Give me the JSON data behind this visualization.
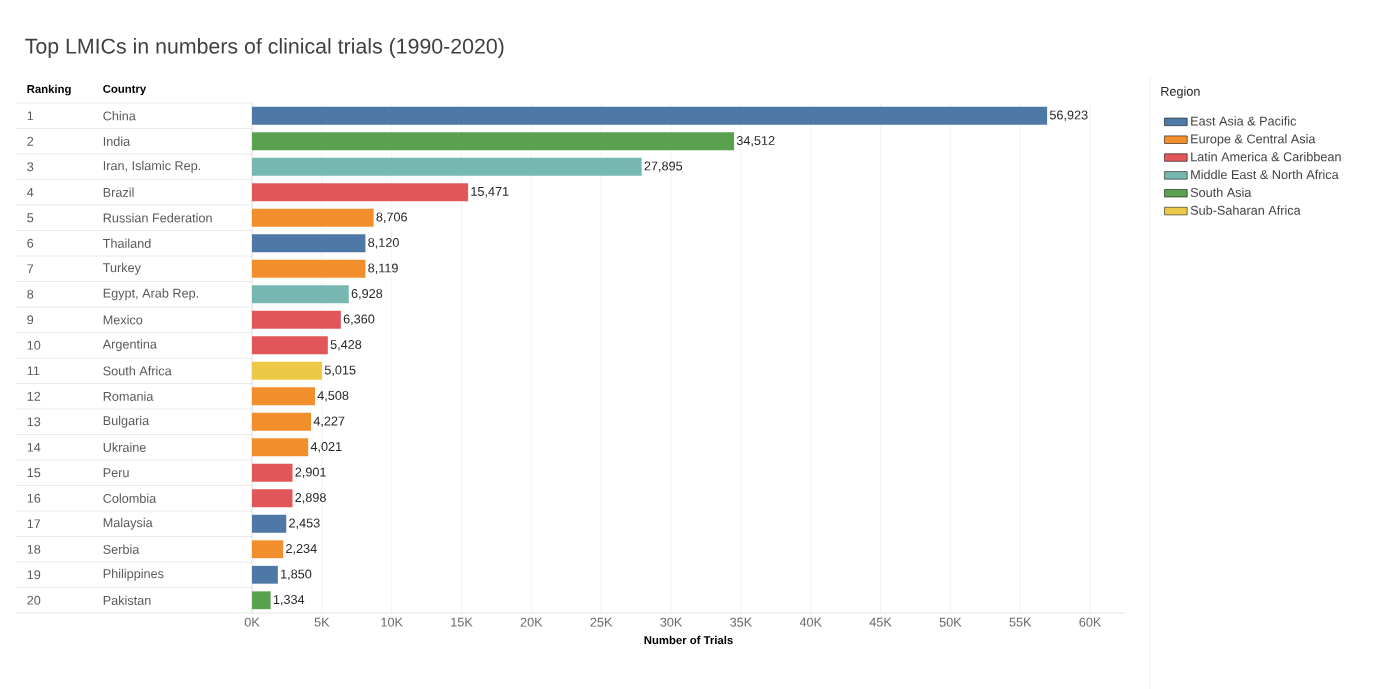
{
  "chart_data": {
    "type": "bar",
    "orientation": "horizontal",
    "title": "Top LMICs in numbers of clinical trials (1990-2020)",
    "xlabel": "Number of Trials",
    "ylabel": "Country",
    "legend_title": "Region",
    "categories": [
      "China",
      "India",
      "Iran, Islamic Rep.",
      "Brazil",
      "Russian Federation",
      "Thailand",
      "Turkey",
      "Egypt, Arab Rep.",
      "Mexico",
      "Argentina",
      "South Africa",
      "Romania",
      "Bulgaria",
      "Ukraine",
      "Peru",
      "Colombia",
      "Malaysia",
      "Serbia",
      "Philippines",
      "Pakistan"
    ],
    "series": [
      {
        "name": "East Asia & Pacific",
        "color": "#4e79a7",
        "values": [
          56923,
          null,
          null,
          null,
          null,
          8120,
          null,
          null,
          null,
          null,
          null,
          null,
          null,
          null,
          null,
          null,
          2453,
          null,
          1850,
          null
        ],
        "value_labels": [
          "56,923",
          null,
          null,
          null,
          null,
          "8,120",
          null,
          null,
          null,
          null,
          null,
          null,
          null,
          null,
          null,
          null,
          "2,453",
          null,
          "1,850",
          null
        ]
      },
      {
        "name": "Europe & Central Asia",
        "color": "#f28e2b",
        "values": [
          null,
          null,
          null,
          null,
          8706,
          null,
          8119,
          null,
          null,
          null,
          null,
          4508,
          4227,
          4021,
          null,
          null,
          null,
          2234,
          null,
          null
        ],
        "value_labels": [
          null,
          null,
          null,
          null,
          "8,706",
          null,
          "8,119",
          null,
          null,
          null,
          null,
          "4,508",
          "4,227",
          "4,021",
          null,
          null,
          null,
          "2,234",
          null,
          null
        ]
      },
      {
        "name": "Latin America & Caribbean",
        "color": "#e15759",
        "values": [
          null,
          null,
          null,
          15471,
          null,
          null,
          null,
          null,
          6360,
          5428,
          null,
          null,
          null,
          null,
          2901,
          2898,
          null,
          null,
          null,
          null
        ],
        "value_labels": [
          null,
          null,
          null,
          "15,471",
          null,
          null,
          null,
          null,
          "6,360",
          "5,428",
          null,
          null,
          null,
          null,
          "2,901",
          "2,898",
          null,
          null,
          null,
          null
        ]
      },
      {
        "name": "Middle East & North Africa",
        "color": "#76b7b2",
        "values": [
          null,
          null,
          27895,
          null,
          null,
          null,
          null,
          6928,
          null,
          null,
          null,
          null,
          null,
          null,
          null,
          null,
          null,
          null,
          null,
          null
        ],
        "value_labels": [
          null,
          null,
          "27,895",
          null,
          null,
          null,
          null,
          "6,928",
          null,
          null,
          null,
          null,
          null,
          null,
          null,
          null,
          null,
          null,
          null,
          null
        ]
      },
      {
        "name": "South Asia",
        "color": "#59a14f",
        "values": [
          null,
          34512,
          null,
          null,
          null,
          null,
          null,
          null,
          null,
          null,
          null,
          null,
          null,
          null,
          null,
          null,
          null,
          null,
          null,
          1334
        ],
        "value_labels": [
          null,
          "34,512",
          null,
          null,
          null,
          null,
          null,
          null,
          null,
          null,
          null,
          null,
          null,
          null,
          null,
          null,
          null,
          null,
          null,
          "1,334"
        ]
      },
      {
        "name": "Sub-Saharan Africa",
        "color": "#edc948",
        "values": [
          null,
          null,
          null,
          null,
          null,
          null,
          null,
          null,
          null,
          null,
          5015,
          null,
          null,
          null,
          null,
          null,
          null,
          null,
          null,
          null
        ],
        "value_labels": [
          null,
          null,
          null,
          null,
          null,
          null,
          null,
          null,
          null,
          null,
          "5,015",
          null,
          null,
          null,
          null,
          null,
          null,
          null,
          null,
          null
        ]
      }
    ],
    "xlim": [
      0,
      62500
    ],
    "xticks": [
      {
        "value": 0,
        "label": "0K"
      },
      {
        "value": 5000,
        "label": "5K"
      },
      {
        "value": 10000,
        "label": "10K"
      },
      {
        "value": 15000,
        "label": "15K"
      },
      {
        "value": 20000,
        "label": "20K"
      },
      {
        "value": 25000,
        "label": "25K"
      },
      {
        "value": 30000,
        "label": "30K"
      },
      {
        "value": 35000,
        "label": "35K"
      },
      {
        "value": 40000,
        "label": "40K"
      },
      {
        "value": 45000,
        "label": "45K"
      },
      {
        "value": 50000,
        "label": "50K"
      },
      {
        "value": 55000,
        "label": "55K"
      },
      {
        "value": 60000,
        "label": "60K"
      }
    ],
    "grid": "x",
    "legend": "top right",
    "annotations": [
      "Ranking",
      "1",
      "2",
      "3",
      "4",
      "5",
      "6",
      "7",
      "8",
      "9",
      "10",
      "11",
      "12",
      "13",
      "14",
      "15",
      "16",
      "17",
      "18",
      "19",
      "20"
    ]
  }
}
